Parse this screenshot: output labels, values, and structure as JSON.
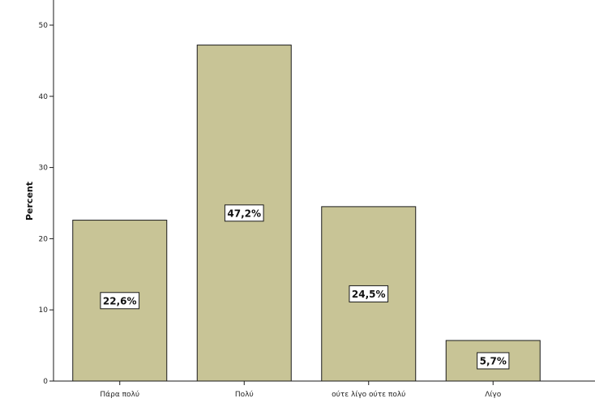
{
  "chart_data": {
    "type": "bar",
    "title": "",
    "xlabel": "",
    "ylabel": "Percent",
    "categories": [
      "Πάρα πολύ",
      "Πολύ",
      "ούτε λίγο ούτε πολύ",
      "Λίγο"
    ],
    "values": [
      22.6,
      47.2,
      24.5,
      5.7
    ],
    "data_labels": [
      "22,6%",
      "47,2%",
      "24,5%",
      "5,7%"
    ],
    "ylim": [
      0,
      50
    ],
    "yticks": [
      "0",
      "10",
      "20",
      "30",
      "40",
      "50"
    ],
    "grid": false,
    "legend": "none",
    "bar_color": "#c8c496",
    "bar_stroke": "#1a1a1a",
    "plot_background": "#ffffff"
  }
}
